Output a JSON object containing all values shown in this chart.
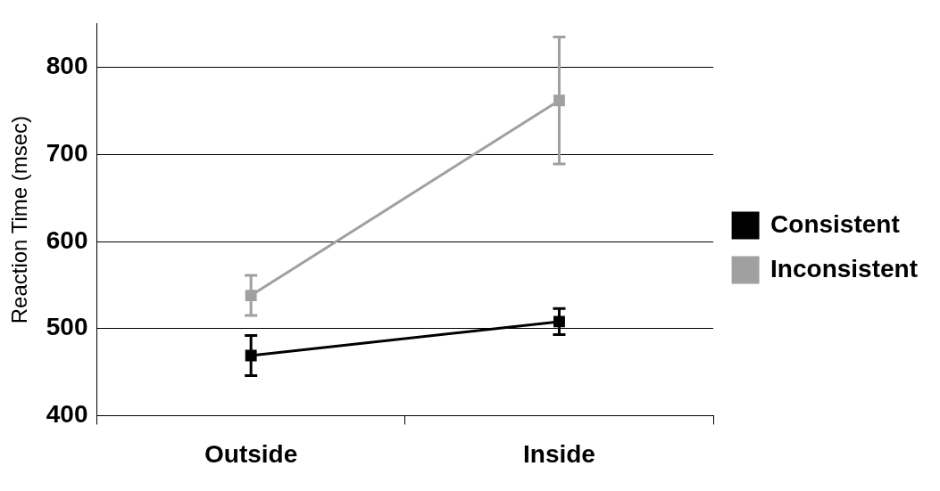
{
  "chart_data": {
    "type": "line",
    "ylabel": "Reaction Time (msec)",
    "categories": [
      "Outside",
      "Inside"
    ],
    "series": [
      {
        "name": "Consistent",
        "color": "#000000",
        "values": [
          469,
          508
        ],
        "errors": [
          23,
          15
        ]
      },
      {
        "name": "Inconsistent",
        "color": "#a0a0a0",
        "values": [
          538,
          762
        ],
        "errors": [
          23,
          73
        ]
      }
    ],
    "ylim": [
      400,
      850
    ],
    "yticks": [
      400,
      500,
      600,
      700,
      800
    ],
    "grid": "y",
    "legend": "right",
    "marker": "square",
    "line_style": "solid"
  }
}
